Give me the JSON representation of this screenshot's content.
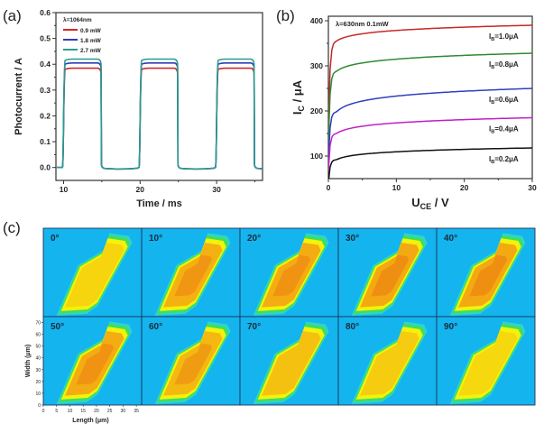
{
  "panel_labels": {
    "a": "(a)",
    "b": "(b)",
    "c": "(c)"
  },
  "chart_data": [
    {
      "id": "a",
      "type": "line",
      "xlabel": "Time / ms",
      "ylabel": "Photocurrent / A",
      "xlim": [
        9,
        36
      ],
      "ylim": [
        -0.05,
        0.6
      ],
      "xticks": [
        10,
        20,
        30
      ],
      "yticks": [
        0.0,
        0.1,
        0.2,
        0.3,
        0.4,
        0.5,
        0.6
      ],
      "ytick_labels": [
        "0.0",
        "0.1",
        "0.2",
        "0.3",
        "0.4",
        "0.5",
        "0.6"
      ],
      "legend_title": "λ=1064nm",
      "legend_position": "top-left",
      "pulse_on_intervals": [
        [
          10,
          15
        ],
        [
          20,
          25
        ],
        [
          30,
          35
        ]
      ],
      "series": [
        {
          "name": "0.9 mW",
          "color": "#d62728",
          "on_level": 0.385,
          "off_level": 0.0
        },
        {
          "name": "1.8 mW",
          "color": "#2c3fb5",
          "on_level": 0.405,
          "off_level": 0.0
        },
        {
          "name": "2.7 mW",
          "color": "#2a9d8f",
          "on_level": 0.42,
          "off_level": 0.0
        }
      ]
    },
    {
      "id": "b",
      "type": "line",
      "xlabel_main": "U",
      "xlabel_sub": "CE",
      "xlabel_unit": " / V",
      "ylabel_main": "I",
      "ylabel_sub": "C",
      "ylabel_unit": " / μA",
      "xlim": [
        0,
        30
      ],
      "ylim": [
        50,
        410
      ],
      "xticks": [
        0,
        10,
        20,
        30
      ],
      "yticks": [
        100,
        200,
        300,
        400
      ],
      "annotation": "λ=630nm 0.1mW",
      "series": [
        {
          "name_main": "I",
          "name_sub": "B",
          "name_val": "=1.0μA",
          "color": "#c62828",
          "sat_at_1V": 355,
          "end_at_30V": 390
        },
        {
          "name_main": "I",
          "name_sub": "B",
          "name_val": "=0.8μA",
          "color": "#2e8b35",
          "sat_at_1V": 288,
          "end_at_30V": 328
        },
        {
          "name_main": "I",
          "name_sub": "B",
          "name_val": "=0.6μA",
          "color": "#2f3fc0",
          "sat_at_1V": 198,
          "end_at_30V": 250
        },
        {
          "name_main": "I",
          "name_sub": "B",
          "name_val": "=0.4μA",
          "color": "#c020c8",
          "sat_at_1V": 150,
          "end_at_30V": 185
        },
        {
          "name_main": "I",
          "name_sub": "B",
          "name_val": "=0.2μA",
          "color": "#111111",
          "sat_at_1V": 92,
          "end_at_30V": 118
        }
      ]
    },
    {
      "id": "c",
      "type": "heatmap",
      "xlabel": "Length (μm)",
      "ylabel": "Width (μm)",
      "xlim": [
        0,
        37
      ],
      "ylim": [
        0,
        75
      ],
      "xticks": [
        0,
        5,
        10,
        15,
        20,
        25,
        30,
        35
      ],
      "yticks": [
        0,
        10,
        20,
        30,
        40,
        50,
        60,
        70
      ],
      "grid_rows": 2,
      "grid_cols": 5,
      "tiles": [
        {
          "label": "0°",
          "intensity": 0.25
        },
        {
          "label": "10°",
          "intensity": 0.7
        },
        {
          "label": "20°",
          "intensity": 0.75
        },
        {
          "label": "30°",
          "intensity": 0.8
        },
        {
          "label": "40°",
          "intensity": 0.8
        },
        {
          "label": "50°",
          "intensity": 0.75
        },
        {
          "label": "60°",
          "intensity": 0.6
        },
        {
          "label": "70°",
          "intensity": 0.5
        },
        {
          "label": "80°",
          "intensity": 0.35
        },
        {
          "label": "90°",
          "intensity": 0.2
        }
      ]
    }
  ]
}
